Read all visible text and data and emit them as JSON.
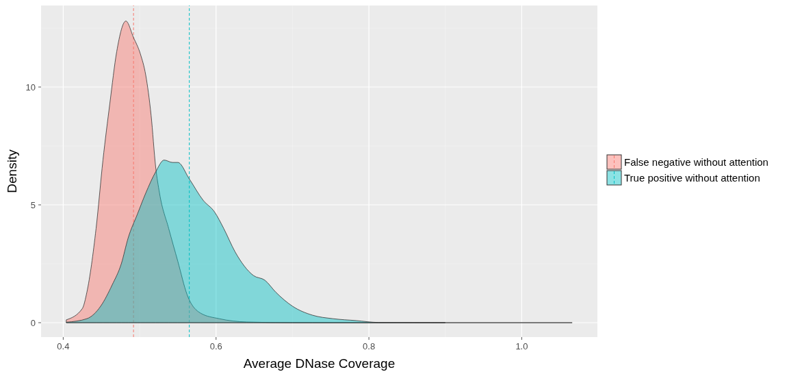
{
  "chart_data": {
    "type": "area",
    "xlabel": "Average DNase Coverage",
    "ylabel": "Density",
    "xlim": [
      0.371,
      1.099
    ],
    "ylim": [
      -0.61,
      13.46
    ],
    "xticks": [
      0.4,
      0.6,
      0.8,
      {
        "value": 1,
        "label": "1.0"
      }
    ],
    "yticks": [
      0,
      5,
      10
    ],
    "grid": true,
    "legend": "right",
    "series": [
      {
        "name": "False negative without attention",
        "color": "#f8766d",
        "x": [
          0.404,
          0.425,
          0.431,
          0.443,
          0.452,
          0.461,
          0.47,
          0.482,
          0.492,
          0.501,
          0.508,
          0.515,
          0.521,
          0.526,
          0.538,
          0.55,
          0.562,
          0.58,
          0.604,
          0.64,
          0.7,
          0.8,
          0.9
        ],
        "values": [
          0.12,
          0.6,
          1.3,
          4.0,
          6.9,
          9.3,
          11.5,
          12.8,
          12.1,
          11.4,
          10.5,
          8.8,
          6.6,
          5.5,
          4.0,
          2.6,
          1.2,
          0.4,
          0.17,
          0.03,
          0,
          0,
          0
        ]
      },
      {
        "name": "True positive without attention",
        "color": "#00bfc4",
        "x": [
          0.404,
          0.431,
          0.449,
          0.464,
          0.476,
          0.485,
          0.497,
          0.508,
          0.521,
          0.532,
          0.543,
          0.55,
          0.565,
          0.583,
          0.598,
          0.61,
          0.625,
          0.649,
          0.664,
          0.678,
          0.7,
          0.726,
          0.753,
          0.783,
          0.813,
          0.9,
          1.066
        ],
        "values": [
          0.02,
          0.17,
          0.7,
          1.6,
          2.5,
          3.6,
          4.6,
          5.5,
          6.4,
          6.9,
          6.8,
          6.8,
          6.1,
          5.2,
          4.7,
          4.0,
          3.0,
          2.0,
          1.8,
          1.3,
          0.7,
          0.32,
          0.17,
          0.09,
          0.01,
          0,
          0
        ]
      }
    ],
    "ref_lines": [
      {
        "axis": "x",
        "value": 0.492,
        "color": "#f8766d",
        "line_style": "dashed"
      },
      {
        "axis": "x",
        "value": 0.565,
        "color": "#00bfc4",
        "line_style": "dashed"
      }
    ]
  }
}
